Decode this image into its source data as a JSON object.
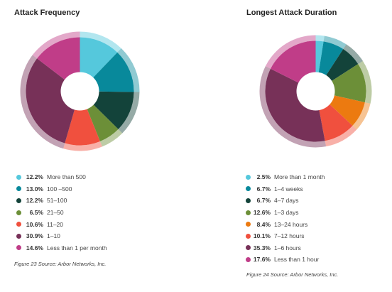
{
  "chart_data": [
    {
      "type": "pie",
      "title": "Attack Frequency",
      "categories": [
        "More than 500",
        "100 –500",
        "51–100",
        "21–50",
        "11–20",
        "1–10",
        "Less than 1 per month"
      ],
      "values": [
        12.2,
        13.0,
        12.2,
        6.5,
        10.6,
        30.9,
        14.6
      ],
      "value_labels": [
        "12.2%",
        "13.0%",
        "12.2%",
        "6.5%",
        "10.6%",
        "30.9%",
        "14.6%"
      ],
      "colors": [
        "#55c8dc",
        "#08899b",
        "#13433a",
        "#6c8f38",
        "#f0503e",
        "#773158",
        "#c03d88"
      ],
      "legend": "bottom",
      "caption": "Figure 23 Source: Arbor Networks, Inc."
    },
    {
      "type": "pie",
      "title": "Longest Attack Duration",
      "categories": [
        "More than 1 month",
        "1–4 weeks",
        "4–7 days",
        "1–3 days",
        "13–24 hours",
        "7–12 hours",
        "1–6 hours",
        "Less than 1 hour"
      ],
      "values": [
        2.5,
        6.7,
        6.7,
        12.6,
        8.4,
        10.1,
        35.3,
        17.6
      ],
      "value_labels": [
        "2.5%",
        "6.7%",
        "6.7%",
        "12.6%",
        "8.4%",
        "10.1%",
        "35.3%",
        "17.6%"
      ],
      "colors": [
        "#55c8dc",
        "#08899b",
        "#13433a",
        "#6c8f38",
        "#ec7a10",
        "#f0503e",
        "#773158",
        "#c03d88"
      ],
      "legend": "bottom",
      "caption": "Figure 24 Source: Arbor Networks, Inc."
    }
  ]
}
